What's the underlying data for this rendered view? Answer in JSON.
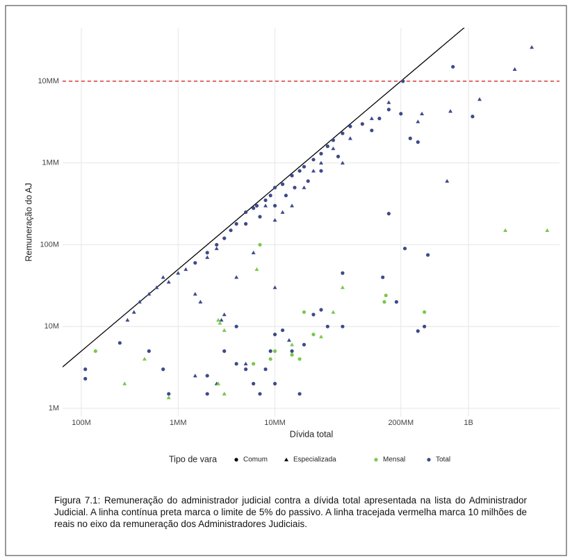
{
  "chart_data": {
    "type": "scatter",
    "x_label": "Dívida total",
    "y_label": "Remuneração do AJ",
    "log_x": true,
    "log_y": true,
    "grid": true,
    "xlim": [
      64000,
      8700000000
    ],
    "ylim": [
      790,
      45000000
    ],
    "xticks": [
      {
        "value": 100000,
        "label": "100M"
      },
      {
        "value": 1000000,
        "label": "1MM"
      },
      {
        "value": 10000000,
        "label": "10MM"
      },
      {
        "value": 200000000,
        "label": "200MM"
      },
      {
        "value": 1000000000,
        "label": "1B"
      }
    ],
    "yticks": [
      {
        "value": 1000,
        "label": "1M"
      },
      {
        "value": 10000,
        "label": "10M"
      },
      {
        "value": 100000,
        "label": "100M"
      },
      {
        "value": 1000000,
        "label": "1MM"
      },
      {
        "value": 10000000,
        "label": "10MM"
      }
    ],
    "reference_line": {
      "slope": 0.05,
      "color": "#000000"
    },
    "hline": {
      "y": 10000000,
      "color": "#d62728",
      "dashed": true
    },
    "legend": {
      "title": "Tipo de vara",
      "position": "bottom",
      "shapes": [
        {
          "name": "Comum",
          "marker": "circle"
        },
        {
          "name": "Especializada",
          "marker": "triangle"
        }
      ],
      "colors": [
        {
          "name": "Mensal",
          "color": "#7bc74d"
        },
        {
          "name": "Total",
          "color": "#3d4a8a"
        }
      ]
    },
    "series": [
      {
        "marker": "circle",
        "color": "#3d4a8a",
        "x": [
          110000,
          110000,
          250000,
          500000,
          700000,
          1500000,
          2000000,
          2500000,
          3000000,
          3500000,
          4000000,
          5000000,
          5000000,
          6000000,
          6500000,
          7000000,
          8000000,
          9000000,
          10000000,
          10000000,
          12000000,
          13000000,
          15000000,
          16000000,
          18000000,
          20000000,
          22000000,
          25000000,
          30000000,
          30000000,
          35000000,
          40000000,
          45000000,
          50000000,
          60000000,
          80000000,
          100000000,
          120000000,
          150000000,
          200000000,
          250000000,
          300000000,
          210000000,
          1100000000,
          690000000,
          3000000,
          4000000,
          4000000,
          5000000,
          6000000,
          7000000,
          8000000,
          10000000,
          10000000,
          12000000,
          15000000,
          18000000,
          20000000,
          25000000,
          30000000,
          35000000,
          50000000,
          50000000,
          130000000,
          150000000,
          180000000,
          220000000,
          300000000,
          350000000,
          380000000,
          800000,
          2000000,
          2000000,
          9000000
        ],
        "y": [
          3000,
          2300,
          6300,
          5000,
          3000,
          60000,
          80000,
          100000,
          120000,
          150000,
          180000,
          250000,
          180000,
          280000,
          300000,
          220000,
          350000,
          400000,
          500000,
          300000,
          550000,
          400000,
          700000,
          500000,
          800000,
          900000,
          600000,
          1100000,
          1300000,
          800000,
          1600000,
          1900000,
          1200000,
          2300000,
          2800000,
          3000000,
          2500000,
          3500000,
          4500000,
          4000000,
          2000000,
          1800000,
          10000000,
          3700000,
          15000000,
          5000,
          10000,
          3500,
          3000,
          2000,
          1500,
          3000,
          8000,
          2000,
          9000,
          5000,
          1500,
          6000,
          14000,
          16000,
          10000,
          10000,
          45000,
          40000,
          240000,
          20000,
          90000,
          8800,
          10000,
          75000,
          1500,
          1500,
          2500,
          5000
        ]
      },
      {
        "marker": "triangle",
        "color": "#3d4a8a",
        "x": [
          300000,
          350000,
          400000,
          500000,
          600000,
          700000,
          800000,
          1000000,
          1200000,
          1500000,
          1700000,
          2000000,
          2500000,
          3000000,
          4000000,
          6000000,
          8000000,
          10000000,
          12000000,
          15000000,
          20000000,
          25000000,
          30000000,
          40000000,
          50000000,
          60000000,
          100000000,
          150000000,
          300000000,
          330000000,
          650000000,
          1300000000,
          3000000000,
          4500000000,
          600000000,
          1500000,
          2500000,
          3000000,
          14000000,
          5000000,
          10000000,
          2800000
        ],
        "y": [
          12000,
          15000,
          20000,
          25000,
          30000,
          40000,
          35000,
          45000,
          50000,
          25000,
          20000,
          70000,
          90000,
          14000,
          40000,
          80000,
          300000,
          200000,
          250000,
          300000,
          500000,
          800000,
          1000000,
          1500000,
          1000000,
          2000000,
          3500000,
          5500000,
          3200000,
          4000000,
          4300000,
          6000000,
          14000000,
          26000000,
          600000,
          2500,
          2000,
          1500,
          6800,
          3500,
          30000,
          12000
        ]
      },
      {
        "marker": "circle",
        "color": "#7bc74d",
        "x": [
          140000,
          7000000,
          10000000,
          15000000,
          20000000,
          25000000,
          140000000,
          135000000,
          350000000,
          6000000,
          9000000,
          18000000
        ],
        "y": [
          5000,
          100000,
          5000,
          4500,
          15000,
          8000,
          24000,
          20000,
          15000,
          3500,
          4000,
          4000
        ]
      },
      {
        "marker": "triangle",
        "color": "#7bc74d",
        "x": [
          280000,
          450000,
          800000,
          2600000,
          2700000,
          3000000,
          2600000,
          3000000,
          6500000,
          15000000,
          30000000,
          40000000,
          50000000,
          2400000000,
          6500000000
        ],
        "y": [
          2000,
          4000,
          1350,
          12000,
          11000,
          9000,
          2000,
          1500,
          50000,
          6000,
          7500,
          15000,
          30000,
          150000,
          150000
        ]
      }
    ],
    "caption": "Figura 7.1: Remuneração do administrador judicial contra a dívida total apresentada na lista do Administrador Judicial. A linha contínua preta marca o limite de 5% do passivo. A linha tracejada vermelha marca 10 milhões de reais no eixo da remuneração dos Administradores Judiciais."
  }
}
